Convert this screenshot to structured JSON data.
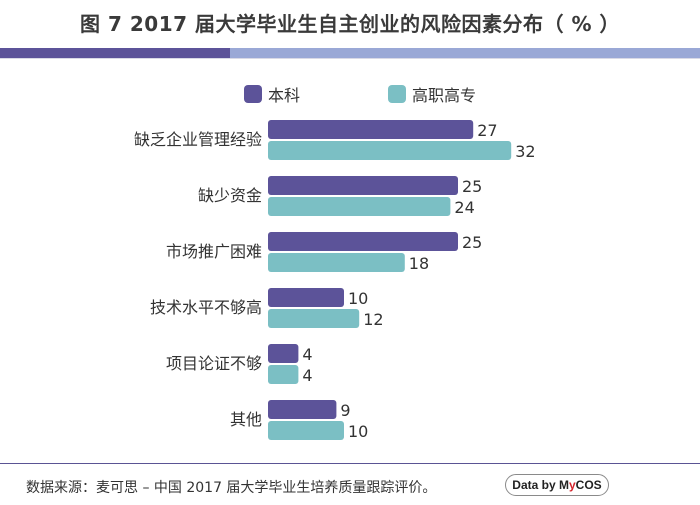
{
  "title": "图 7  2017 届大学毕业生自主创业的风险因素分布（ % ）",
  "colors": {
    "series1": "#5c5399",
    "series2": "#7bbfc4",
    "rule_dark": "#5c5399",
    "rule_light": "#9aa8d6"
  },
  "chart_data": {
    "type": "bar",
    "orientation": "horizontal",
    "title": "图 7  2017 届大学毕业生自主创业的风险因素分布（ % ）",
    "categories": [
      "缺乏企业管理经验",
      "缺少资金",
      "市场推广困难",
      "技术水平不够高",
      "项目论证不够",
      "其他"
    ],
    "series": [
      {
        "name": "本科",
        "values": [
          27,
          25,
          25,
          10,
          4,
          9
        ]
      },
      {
        "name": "高职高专",
        "values": [
          32,
          24,
          18,
          12,
          4,
          10
        ]
      }
    ],
    "xlim": [
      0,
      32
    ],
    "grid": false,
    "legend": "top"
  },
  "footer": {
    "source": "数据来源：麦可思 – 中国 2017 届大学毕业生培养质量跟踪评价。",
    "badge_pre": "Data by M",
    "badge_accent": "y",
    "badge_post": "COS"
  }
}
